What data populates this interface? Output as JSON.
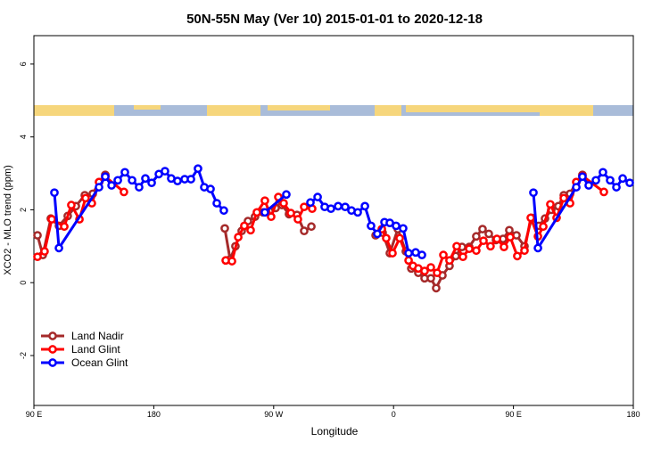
{
  "chart_data": {
    "type": "line",
    "title": "50N-55N May (Ver 10)   2015-01-01 to 2020-12-18",
    "x_label": "Longitude",
    "y_label": "XCO2 - MLO trend (ppm)",
    "xlim": [
      90,
      540
    ],
    "ylim": [
      -3.37,
      6.78
    ],
    "xticks": [
      {
        "value": 90,
        "label": "90 E"
      },
      180,
      {
        "value": 270,
        "label": "90 W"
      },
      {
        "value": 360,
        "label": "0"
      },
      {
        "value": 450,
        "label": "90 E"
      },
      180
    ],
    "yticks": [
      -2,
      0,
      2,
      4,
      6
    ],
    "legend": "bottom-left",
    "series": [
      {
        "name": "Land Nadir",
        "color": "#a52a2a",
        "x": [
          92.7,
          96.7,
          102.7,
          108.8,
          115.4,
          121.5,
          128.2,
          134.2,
          139,
          143.6,
          null,
          233.3,
          237.3,
          241.3,
          246,
          250.7,
          256,
          262,
          266.8,
          271.5,
          276.2,
          281.5,
          287.5,
          292.9,
          298.3,
          null,
          346.5,
          351.8,
          357.2,
          363.2,
          369.2,
          373.3,
          378.6,
          383.3,
          388,
          392,
          396.7,
          402,
          406.7,
          411.4,
          416.8,
          422.1,
          426.8,
          431.5,
          436.9,
          442.2,
          446.9,
          452.3,
          458.3,
          463.7,
          469,
          473.7,
          478.4,
          483.7,
          487.8,
          492.5,
          497.2,
          501.8
        ],
        "values": [
          1.3,
          0.76,
          1.76,
          1.56,
          1.83,
          2.1,
          2.4,
          2.44,
          2.76,
          2.96,
          null,
          1.49,
          0.64,
          1.0,
          1.42,
          1.69,
          1.81,
          1.93,
          1.96,
          2.05,
          2.13,
          1.88,
          1.86,
          1.42,
          1.54,
          null,
          1.3,
          1.37,
          0.81,
          1.47,
          0.86,
          0.39,
          0.27,
          0.12,
          0.12,
          -0.15,
          0.2,
          0.46,
          0.73,
          0.98,
          0.98,
          1.27,
          1.47,
          1.34,
          1.17,
          1.2,
          1.44,
          1.3,
          1.0,
          1.78,
          1.56,
          1.76,
          2.0,
          2.1,
          2.4,
          2.44,
          2.76,
          2.96
        ]
      },
      {
        "name": "Land Glint",
        "color": "#ff0000",
        "x": [
          92.7,
          98,
          103.4,
          112.8,
          118.1,
          124.2,
          128.8,
          133.5,
          138.9,
          143.6,
          157.6,
          null,
          234,
          238.7,
          243.4,
          248,
          252.7,
          257.4,
          263.4,
          268.1,
          273.5,
          277.5,
          282.9,
          288.2,
          292.9,
          298.9,
          null,
          351.2,
          354.5,
          359.2,
          364.6,
          371.3,
          374.6,
          378.6,
          383.3,
          388,
          392.7,
          397.4,
          402,
          407.4,
          412.1,
          416.8,
          422.1,
          427.5,
          432.8,
          437.6,
          442.9,
          447.6,
          452.9,
          458.3,
          463,
          468.4,
          472.4,
          477.7,
          482.4,
          487.8,
          492.5,
          497.2,
          501.8,
          517.9
        ],
        "values": [
          0.71,
          0.86,
          1.74,
          1.54,
          2.13,
          1.74,
          2.32,
          2.18,
          2.76,
          2.91,
          2.49,
          null,
          0.61,
          0.59,
          1.25,
          1.56,
          1.44,
          1.93,
          2.25,
          1.81,
          2.35,
          2.18,
          1.91,
          1.74,
          2.08,
          2.03,
          null,
          1.47,
          1.22,
          0.81,
          1.22,
          0.61,
          0.46,
          0.39,
          0.32,
          0.42,
          0.27,
          0.76,
          0.61,
          1.0,
          0.71,
          0.93,
          0.88,
          1.15,
          1.0,
          1.2,
          0.98,
          1.25,
          0.73,
          0.88,
          1.78,
          1.27,
          1.54,
          2.15,
          1.78,
          2.32,
          2.18,
          2.76,
          2.93,
          2.49
        ]
      },
      {
        "name": "Ocean Glint",
        "color": "#0000ff",
        "x": [
          105.4,
          108.8,
          138.9,
          143.6,
          148.3,
          153,
          158.3,
          163.7,
          169,
          173.7,
          178.4,
          183.8,
          188.4,
          193.1,
          197.8,
          203.2,
          207.9,
          213.2,
          217.9,
          222.6,
          227.3,
          232.6,
          null,
          263.4,
          279.5,
          null,
          297.6,
          303,
          308.3,
          313,
          318.4,
          323.7,
          328.4,
          333.1,
          338.5,
          343.1,
          347.8,
          353.2,
          357.2,
          361.9,
          367.2,
          371.3,
          376.6,
          381.3,
          null,
          465,
          468.4,
          497.2,
          501.8,
          506.5,
          511.9,
          517.2,
          522.6,
          527.3,
          532,
          537.3
        ],
        "values": [
          2.47,
          0.95,
          2.62,
          2.91,
          2.67,
          2.81,
          3.03,
          2.81,
          2.62,
          2.86,
          2.74,
          2.98,
          3.06,
          2.86,
          2.79,
          2.84,
          2.84,
          3.13,
          2.62,
          2.57,
          2.18,
          1.98,
          null,
          1.93,
          2.42,
          null,
          2.2,
          2.35,
          2.08,
          2.03,
          2.1,
          2.08,
          1.98,
          1.93,
          2.1,
          1.56,
          1.34,
          1.66,
          1.64,
          1.56,
          1.49,
          0.81,
          0.83,
          0.76,
          null,
          2.47,
          0.95,
          2.62,
          2.91,
          2.67,
          2.81,
          3.03,
          2.81,
          2.62,
          2.86,
          2.74
        ]
      }
    ]
  }
}
